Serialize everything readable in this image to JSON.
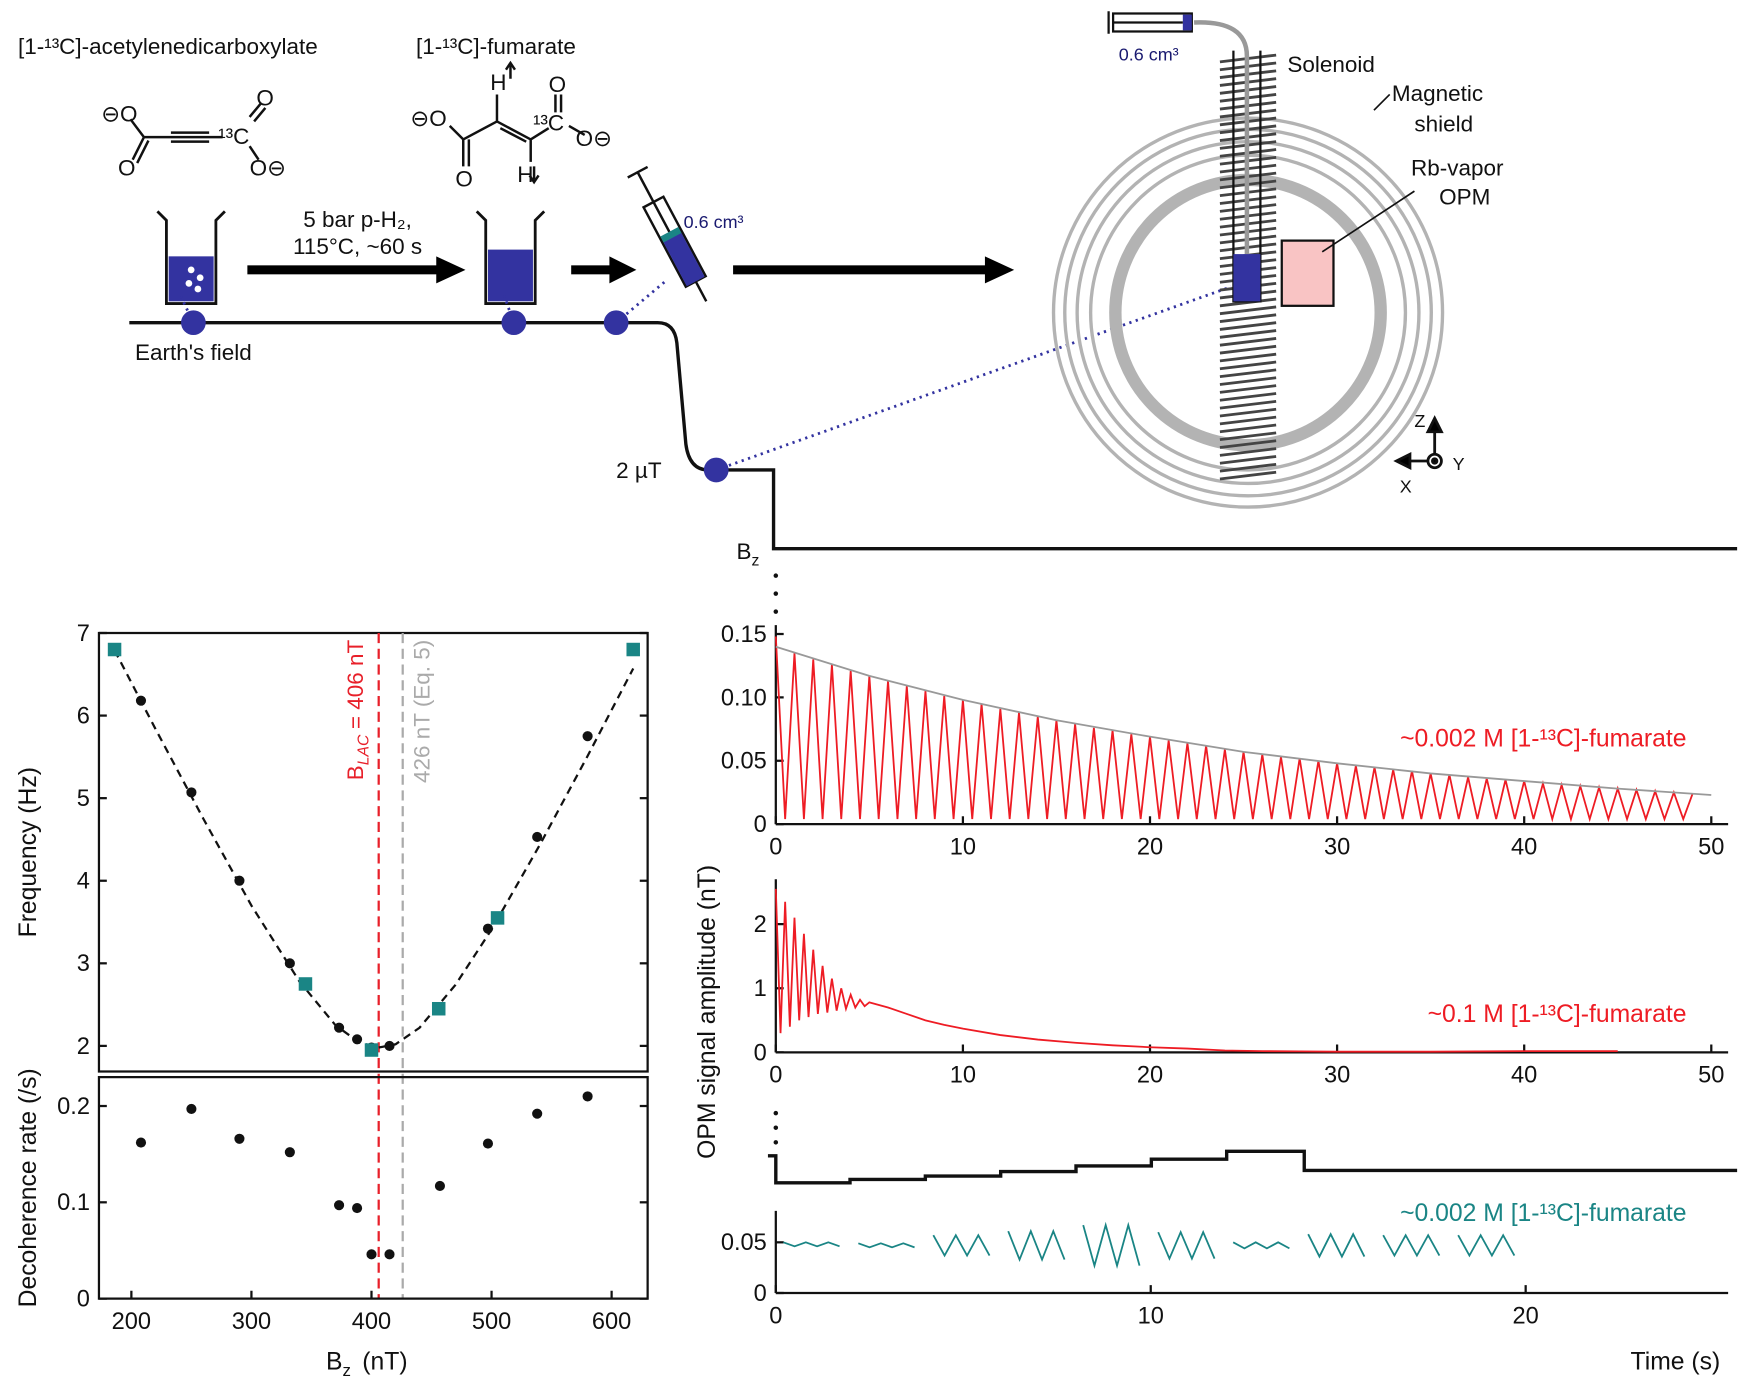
{
  "diagram": {
    "reactant": "[1-¹³C]-acetylenedicarboxylate",
    "product": "[1-¹³C]-fumarate",
    "conditions": [
      "5 bar p-H₂,",
      "115°C, ~60 s"
    ],
    "volume": "0.6 cm³",
    "earth_field": "Earth's field",
    "low_field": "2 µT",
    "field_axis": {
      "main": "B",
      "sub": "z"
    },
    "syringe_volume": "0.6 cm³",
    "solenoid": "Solenoid",
    "shield": [
      "Magnetic",
      "shield"
    ],
    "sensor": [
      "Rb-vapor",
      "OPM"
    ],
    "axes": [
      "Z",
      "Y",
      "X"
    ],
    "atoms_1": [
      "⊖O",
      "O",
      "¹³C",
      "O",
      "O⊖"
    ],
    "atoms_2": [
      "⊖O",
      "O",
      "H",
      "H",
      "¹³C",
      "O",
      "O⊖"
    ]
  },
  "chart_data": [
    {
      "type": "scatter",
      "ylabel": "Frequency (Hz)",
      "frame": true,
      "xlim": [
        173,
        630
      ],
      "ylim": [
        1.69,
        7
      ],
      "yticks": [
        2,
        3,
        4,
        5,
        6,
        7
      ],
      "vlines": [
        {
          "x": 406,
          "color": "#e8202a",
          "label": {
            "main": "B",
            "sub": "LAC",
            "text": "= 406 nT"
          }
        },
        {
          "x": 426,
          "color": "#aaaaaa",
          "label": "426 nT (Eq. 5)"
        }
      ],
      "series": [
        {
          "type": "line",
          "dashed": true,
          "color": "#111111",
          "x": [
            186,
            220,
            260,
            300,
            340,
            370,
            390,
            406,
            420,
            440,
            470,
            500,
            540,
            580,
            618
          ],
          "values": [
            6.79,
            5.84,
            4.75,
            3.7,
            2.78,
            2.25,
            2.04,
            1.98,
            2.02,
            2.22,
            2.74,
            3.41,
            4.43,
            5.51,
            6.57
          ]
        },
        {
          "type": "scatter",
          "marker": "circle",
          "color": "#111111",
          "x": [
            208,
            250,
            290,
            332,
            373,
            388,
            400,
            415,
            457,
            497,
            538,
            580
          ],
          "values": [
            6.18,
            5.07,
            4.0,
            3.0,
            2.22,
            2.08,
            1.98,
            2.0,
            2.45,
            3.42,
            4.53,
            5.75
          ]
        },
        {
          "type": "scatter",
          "marker": "square",
          "color": "#1a8585",
          "x": [
            186,
            345,
            400,
            456,
            505,
            618
          ],
          "values": [
            6.8,
            2.75,
            1.95,
            2.45,
            3.55,
            6.8
          ]
        }
      ]
    },
    {
      "type": "scatter",
      "ylabel": "Decoherence rate (/s)",
      "xlabel": {
        "main": "B",
        "sub": "z",
        "text": "(nT)"
      },
      "frame": true,
      "xlim": [
        173,
        630
      ],
      "ylim": [
        0,
        0.23
      ],
      "xticks": [
        200,
        300,
        400,
        500,
        600
      ],
      "yticks": [
        0,
        0.1,
        0.2
      ],
      "series": [
        {
          "type": "scatter",
          "marker": "circle",
          "color": "#111111",
          "x": [
            208,
            250,
            290,
            332,
            373,
            388,
            400,
            415,
            457,
            497,
            538,
            580
          ],
          "values": [
            0.162,
            0.197,
            0.166,
            0.152,
            0.097,
            0.094,
            0.046,
            0.046,
            0.117,
            0.161,
            0.192,
            0.21
          ]
        }
      ]
    },
    {
      "type": "line",
      "annotation": "~0.002 M [1-¹³C]-fumarate",
      "xlim": [
        0,
        50.9
      ],
      "ylim": [
        0,
        0.157
      ],
      "xticks": [
        0,
        10,
        20,
        30,
        40,
        50
      ],
      "yticks": [
        0,
        0.05,
        {
          "value": 0.1,
          "label": "0.10"
        },
        0.15
      ],
      "series": [
        {
          "color": "#ee1c24",
          "x": [
            0,
            0.5,
            1,
            1.5,
            2,
            2.5,
            3,
            3.5,
            4,
            4.5,
            5,
            5.5,
            6,
            6.5,
            7,
            7.5,
            8,
            8.5,
            9,
            9.5,
            10,
            10.5,
            11,
            11.5,
            12,
            12.5,
            13,
            13.5,
            14,
            14.5,
            15,
            15.5,
            16,
            16.5,
            17,
            17.5,
            18,
            18.5,
            19,
            19.5,
            20,
            20.5,
            21,
            21.5,
            22,
            22.5,
            23,
            23.5,
            24,
            24.5,
            25,
            25.5,
            26,
            26.5,
            27,
            27.5,
            28,
            28.5,
            29,
            29.5,
            30,
            30.5,
            31,
            31.5,
            32,
            32.5,
            33,
            33.5,
            34,
            34.5,
            35,
            35.5,
            36,
            36.5,
            37,
            37.5,
            38,
            38.5,
            39,
            39.5,
            40,
            40.5,
            41,
            41.5,
            42,
            42.5,
            43,
            43.5,
            44,
            44.5,
            45,
            45.5,
            46,
            46.5,
            47,
            47.5,
            48,
            48.5,
            49
          ],
          "values": [
            0.148,
            0.004,
            0.135,
            0.004,
            0.13,
            0.004,
            0.126,
            0.004,
            0.121,
            0.004,
            0.117,
            0.004,
            0.113,
            0.004,
            0.109,
            0.004,
            0.105,
            0.004,
            0.101,
            0.004,
            0.098,
            0.004,
            0.095,
            0.004,
            0.091,
            0.004,
            0.088,
            0.004,
            0.085,
            0.004,
            0.082,
            0.004,
            0.079,
            0.004,
            0.076,
            0.004,
            0.074,
            0.004,
            0.071,
            0.004,
            0.069,
            0.004,
            0.066,
            0.004,
            0.064,
            0.004,
            0.062,
            0.004,
            0.059,
            0.004,
            0.057,
            0.004,
            0.055,
            0.004,
            0.053,
            0.004,
            0.052,
            0.004,
            0.05,
            0.004,
            0.048,
            0.004,
            0.046,
            0.004,
            0.045,
            0.004,
            0.043,
            0.004,
            0.042,
            0.004,
            0.04,
            0.004,
            0.039,
            0.004,
            0.037,
            0.004,
            0.036,
            0.004,
            0.035,
            0.004,
            0.034,
            0.004,
            0.032,
            0.004,
            0.031,
            0.004,
            0.03,
            0.004,
            0.029,
            0.004,
            0.028,
            0.004,
            0.027,
            0.004,
            0.026,
            0.004,
            0.025,
            0.004,
            0.024
          ]
        },
        {
          "color": "#999999",
          "x": [
            0,
            5,
            10,
            15,
            20,
            25,
            30,
            35,
            40,
            45,
            50
          ],
          "values": [
            0.14,
            0.117,
            0.098,
            0.082,
            0.069,
            0.057,
            0.048,
            0.04,
            0.034,
            0.028,
            0.023
          ]
        }
      ]
    },
    {
      "type": "line",
      "annotation": "~0.1 M [1-¹³C]-fumarate",
      "ylabel": "OPM signal amplitude (nT)",
      "xlim": [
        0,
        50.9
      ],
      "ylim": [
        0,
        2.7
      ],
      "xticks": [
        0,
        10,
        20,
        30,
        40,
        50
      ],
      "yticks": [
        0,
        1,
        2
      ],
      "series": [
        {
          "color": "#ee1c24",
          "x": [
            0,
            0.25,
            0.5,
            0.75,
            1,
            1.25,
            1.5,
            1.75,
            2,
            2.25,
            2.5,
            2.75,
            3,
            3.25,
            3.5,
            3.75,
            4,
            4.25,
            4.5,
            4.75,
            5,
            6,
            7,
            8,
            9,
            10,
            12,
            14,
            16,
            18,
            20,
            22,
            24,
            26,
            28,
            30,
            35,
            40,
            45
          ],
          "values": [
            2.55,
            0.3,
            2.35,
            0.4,
            2.1,
            0.5,
            1.85,
            0.55,
            1.6,
            0.6,
            1.35,
            0.62,
            1.15,
            0.65,
            1.0,
            0.68,
            0.9,
            0.7,
            0.82,
            0.72,
            0.78,
            0.7,
            0.6,
            0.5,
            0.43,
            0.37,
            0.27,
            0.2,
            0.15,
            0.11,
            0.08,
            0.06,
            0.03,
            0.02,
            0.015,
            0.01,
            0.01,
            0.02,
            0.02
          ]
        }
      ]
    },
    {
      "type": "line",
      "annotation": "~0.002 M [1-¹³C]-fumarate",
      "xlabel": "Time (s)",
      "xlim": [
        0,
        25.4
      ],
      "ylim": [
        0,
        0.081
      ],
      "xticks": [
        0,
        10,
        20
      ],
      "yticks": [
        0,
        0.05
      ],
      "series": [
        {
          "color": "#1a8585",
          "x": [
            0.2,
            0.5,
            0.8,
            1.1,
            1.4,
            1.7,
            2,
            2.2,
            2.5,
            2.8,
            3.1,
            3.4,
            3.7,
            4,
            4.2,
            4.5,
            4.8,
            5.1,
            5.4,
            5.7,
            6,
            6.2,
            6.5,
            6.8,
            7.1,
            7.4,
            7.7,
            8,
            8.2,
            8.5,
            8.8,
            9.1,
            9.4,
            9.7,
            10,
            10.2,
            10.5,
            10.8,
            11.1,
            11.4,
            11.7,
            12,
            12.2,
            12.5,
            12.8,
            13.1,
            13.4,
            13.7,
            14,
            14.2,
            14.5,
            14.8,
            15.1,
            15.4,
            15.7,
            16,
            16.2,
            16.5,
            16.8,
            17.1,
            17.4,
            17.7,
            18,
            18.2,
            18.5,
            18.8,
            19.1,
            19.4,
            19.7
          ],
          "values": [
            0.05,
            0.046,
            0.05,
            0.046,
            0.05,
            0.046,
            null,
            0.049,
            0.045,
            0.049,
            0.045,
            0.049,
            0.045,
            null,
            0.057,
            0.037,
            0.057,
            0.037,
            0.057,
            0.037,
            null,
            0.061,
            0.033,
            0.061,
            0.033,
            0.061,
            0.033,
            null,
            0.067,
            0.027,
            0.067,
            0.027,
            0.067,
            0.027,
            null,
            0.06,
            0.034,
            0.06,
            0.034,
            0.06,
            0.034,
            null,
            0.05,
            0.044,
            0.05,
            0.044,
            0.05,
            0.044,
            null,
            0.058,
            0.036,
            0.058,
            0.036,
            0.058,
            0.036,
            null,
            0.057,
            0.037,
            0.057,
            0.037,
            0.057,
            0.037,
            null,
            0.057,
            0.037,
            0.057,
            0.037,
            0.057,
            0.037
          ]
        }
      ]
    }
  ]
}
